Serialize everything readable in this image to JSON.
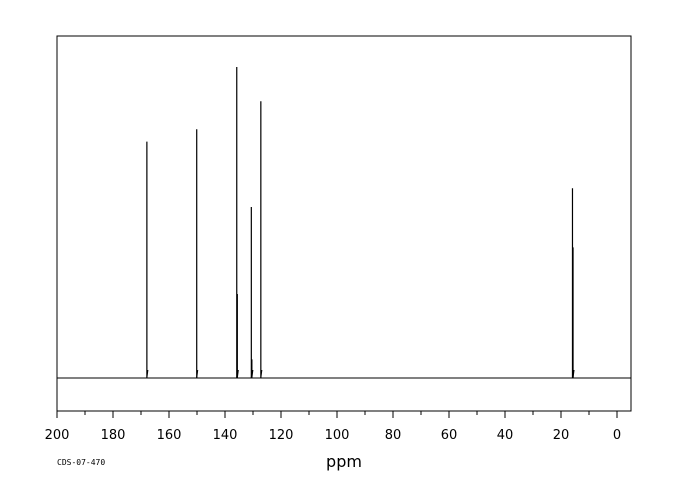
{
  "chart_data": {
    "type": "line",
    "title": "",
    "xlabel": "ppm",
    "ylabel": "",
    "xlim": [
      200,
      -5
    ],
    "x_direction": "descending",
    "xticks": [
      200,
      180,
      160,
      140,
      120,
      100,
      80,
      60,
      40,
      20,
      0
    ],
    "xtick_labels": [
      "200",
      "180",
      "160",
      "140",
      "120",
      "100",
      "80",
      "60",
      "40",
      "20",
      "0"
    ],
    "minor_tick_step": 10,
    "grid": false,
    "legend": "none",
    "intensity_scale": "relative (0-100)",
    "peaks": [
      {
        "ppm": 167.9,
        "intensity": 76
      },
      {
        "ppm": 150.1,
        "intensity": 80
      },
      {
        "ppm": 135.8,
        "intensity": 100
      },
      {
        "ppm": 135.6,
        "intensity": 27
      },
      {
        "ppm": 130.6,
        "intensity": 55
      },
      {
        "ppm": 130.4,
        "intensity": 6
      },
      {
        "ppm": 127.2,
        "intensity": 89
      },
      {
        "ppm": 15.9,
        "intensity": 61
      },
      {
        "ppm": 15.7,
        "intensity": 42
      }
    ],
    "annotations": [
      "CDS-07-470"
    ]
  },
  "colors": {
    "line": "#000000",
    "background": "#ffffff",
    "frame": "#000000"
  }
}
